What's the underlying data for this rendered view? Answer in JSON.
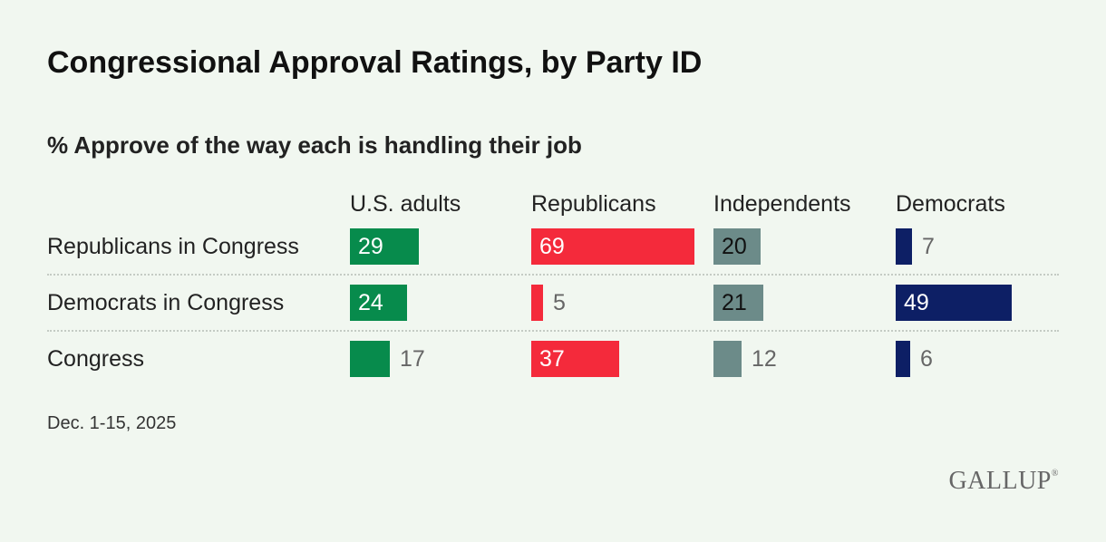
{
  "chart_data": {
    "type": "bar",
    "title": "Congressional Approval Ratings, by Party ID",
    "subtitle": "% Approve of the way each is handling their job",
    "categories": [
      "Republicans in Congress",
      "Democrats in Congress",
      "Congress"
    ],
    "series": [
      {
        "name": "U.S. adults",
        "color": "#078b4c",
        "values": [
          29,
          24,
          17
        ]
      },
      {
        "name": "Republicans",
        "color": "#f42a3b",
        "values": [
          69,
          5,
          37
        ]
      },
      {
        "name": "Independents",
        "color": "#6c8b89",
        "values": [
          20,
          21,
          12
        ]
      },
      {
        "name": "Democrats",
        "color": "#0d1f65",
        "values": [
          7,
          49,
          6
        ]
      }
    ],
    "xlim": [
      0,
      100
    ],
    "footnote": "Dec. 1-15, 2025"
  },
  "brand": "GALLUP",
  "brand_mark": "®"
}
